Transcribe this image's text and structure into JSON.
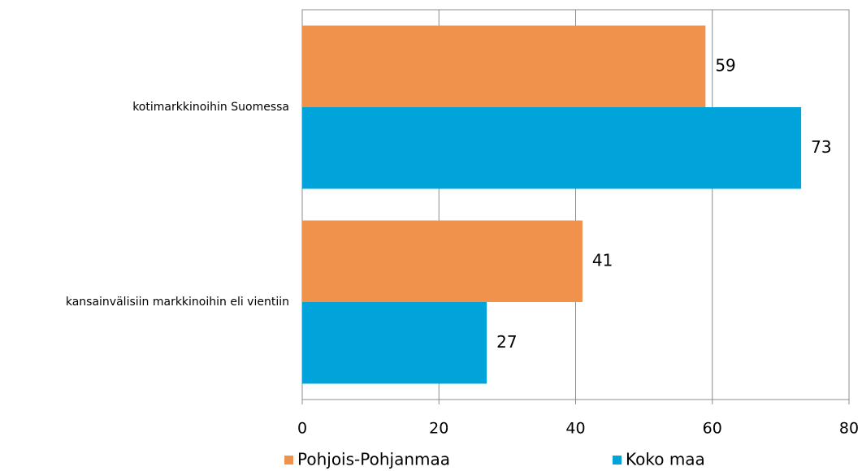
{
  "chart_data": {
    "type": "bar",
    "orientation": "horizontal",
    "categories": [
      "kotimarkkinoihin Suomessa",
      "kansainvälisiin markkinoihin eli vientiin"
    ],
    "series": [
      {
        "name": "Pohjois-Pohjanmaa",
        "color": "#f0924c",
        "values": [
          59,
          41
        ]
      },
      {
        "name": "Koko maa",
        "color": "#00a3da",
        "values": [
          73,
          27
        ]
      }
    ],
    "xlim": [
      0,
      80
    ],
    "xticks": [
      0,
      20,
      40,
      60,
      80
    ],
    "grid": true,
    "legend": "bottom"
  }
}
